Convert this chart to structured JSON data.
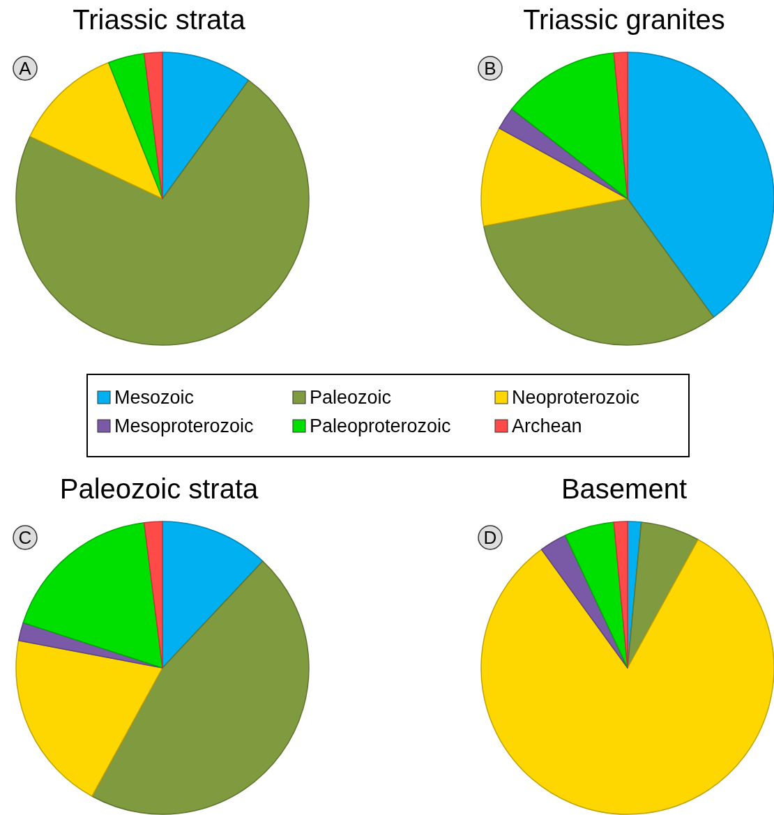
{
  "chart_data": [
    {
      "type": "pie",
      "title": "Triassic strata",
      "annotations": [
        "A"
      ],
      "legend": "bottom",
      "categories": [
        "Mesozoic",
        "Paleozoic",
        "Neoproterozoic",
        "Mesoproterozoic",
        "Paleoproterozoic",
        "Archean"
      ],
      "values": [
        10,
        72,
        12,
        0,
        4,
        2
      ],
      "colors": [
        "#00b0f0",
        "#7f9a3f",
        "#ffd700",
        "#7a5aa6",
        "#00e000",
        "#ff4a4a"
      ]
    },
    {
      "type": "pie",
      "title": "Triassic granites",
      "annotations": [
        "B"
      ],
      "categories": [
        null,
        null,
        null,
        null,
        null,
        null
      ],
      "values": [
        40,
        32,
        11,
        2.5,
        13,
        1.5
      ],
      "colors": [
        "#00b0f0",
        "#7f9a3f",
        "#ffd700",
        "#7a5aa6",
        "#00e000",
        "#ff4a4a"
      ]
    },
    {
      "type": "pie",
      "title": "Paleozoic strata",
      "annotations": [
        "C"
      ],
      "categories": [
        null,
        null,
        null,
        null,
        null,
        null
      ],
      "values": [
        12,
        46,
        20,
        2,
        18,
        2
      ],
      "colors": [
        "#00b0f0",
        "#7f9a3f",
        "#ffd700",
        "#7a5aa6",
        "#00e000",
        "#ff4a4a"
      ]
    },
    {
      "type": "pie",
      "title": "Basement",
      "annotations": [
        "D"
      ],
      "categories": [
        null,
        null,
        null,
        null,
        null,
        null
      ],
      "values": [
        1.5,
        6.5,
        82,
        3,
        5.5,
        1.5
      ],
      "colors": [
        "#00b0f0",
        "#7f9a3f",
        "#ffd700",
        "#7a5aa6",
        "#00e000",
        "#ff4a4a"
      ]
    }
  ]
}
